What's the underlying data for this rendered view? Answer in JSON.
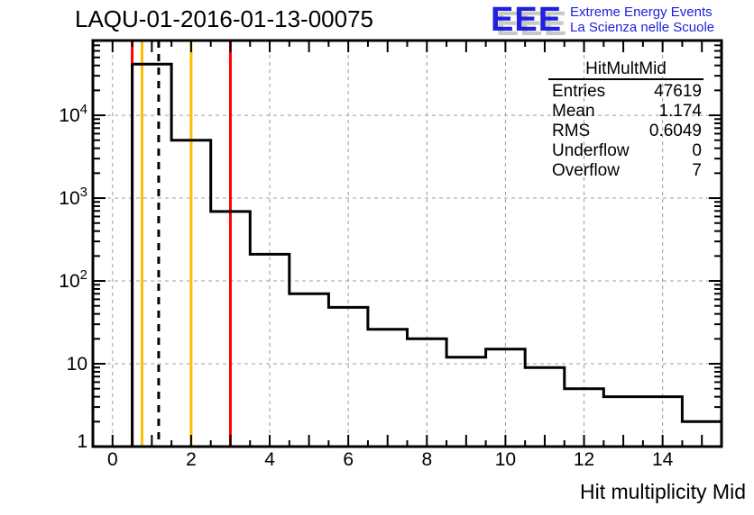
{
  "title": "LAQU-01-2016-01-13-00075",
  "logo": {
    "acronym": "EEE",
    "tagline1": "Extreme Energy Events",
    "tagline2": "La Scienza nelle Scuole",
    "color": "#2020dd",
    "shadow_color": "#c8c8c8"
  },
  "stats": {
    "title": "HitMultMid",
    "rows": [
      {
        "label": "Entries",
        "value": "47619"
      },
      {
        "label": "Mean",
        "value": "1.174"
      },
      {
        "label": "RMS",
        "value": "0.6049"
      },
      {
        "label": "Underflow",
        "value": "0"
      },
      {
        "label": "Overflow",
        "value": "7"
      }
    ]
  },
  "chart_data": {
    "type": "bar",
    "subtype": "step-outline-histogram",
    "title": "LAQU-01-2016-01-13-00075",
    "xlabel": "Hit multiplicity Mid",
    "ylabel": "",
    "yscale": "log",
    "grid": true,
    "grid_color": "#9c9c9c",
    "line_color": "#000000",
    "categories": [
      0,
      1,
      2,
      3,
      4,
      5,
      6,
      7,
      8,
      9,
      10,
      11,
      12,
      13,
      14,
      15
    ],
    "values": [
      0,
      41500,
      5000,
      690,
      210,
      70,
      48,
      26,
      20,
      12,
      15,
      9,
      5,
      4,
      4,
      2
    ],
    "bin_width": 1,
    "xlim": [
      -0.5,
      15.5
    ],
    "ylim": [
      1,
      80000
    ],
    "x_major_tick_values": [
      0,
      2,
      4,
      6,
      8,
      10,
      12,
      14
    ],
    "x_major_tick_labels": [
      "0",
      "2",
      "4",
      "6",
      "8",
      "10",
      "12",
      "14"
    ],
    "x_minor_tick_step": 0.5,
    "y_tick_labels": [
      {
        "value": 1,
        "label": "1"
      },
      {
        "value": 10,
        "label": "10"
      },
      {
        "value": 100,
        "label": "10^2"
      },
      {
        "value": 1000,
        "label": "10^3"
      },
      {
        "value": 10000,
        "label": "10^4"
      }
    ],
    "marker_lines": [
      {
        "x": 0.5,
        "color": "#ff0000",
        "style": "solid",
        "name": "red-lower-cut"
      },
      {
        "x": 0.75,
        "color": "#fdbf00",
        "style": "solid",
        "name": "orange-lower-cut"
      },
      {
        "x": 1.174,
        "color": "#000000",
        "style": "dashed",
        "name": "mean-dashed-line"
      },
      {
        "x": 2,
        "color": "#fdbf00",
        "style": "solid",
        "name": "orange-upper-cut"
      },
      {
        "x": 3,
        "color": "#ff0000",
        "style": "solid",
        "name": "red-upper-cut"
      }
    ]
  }
}
